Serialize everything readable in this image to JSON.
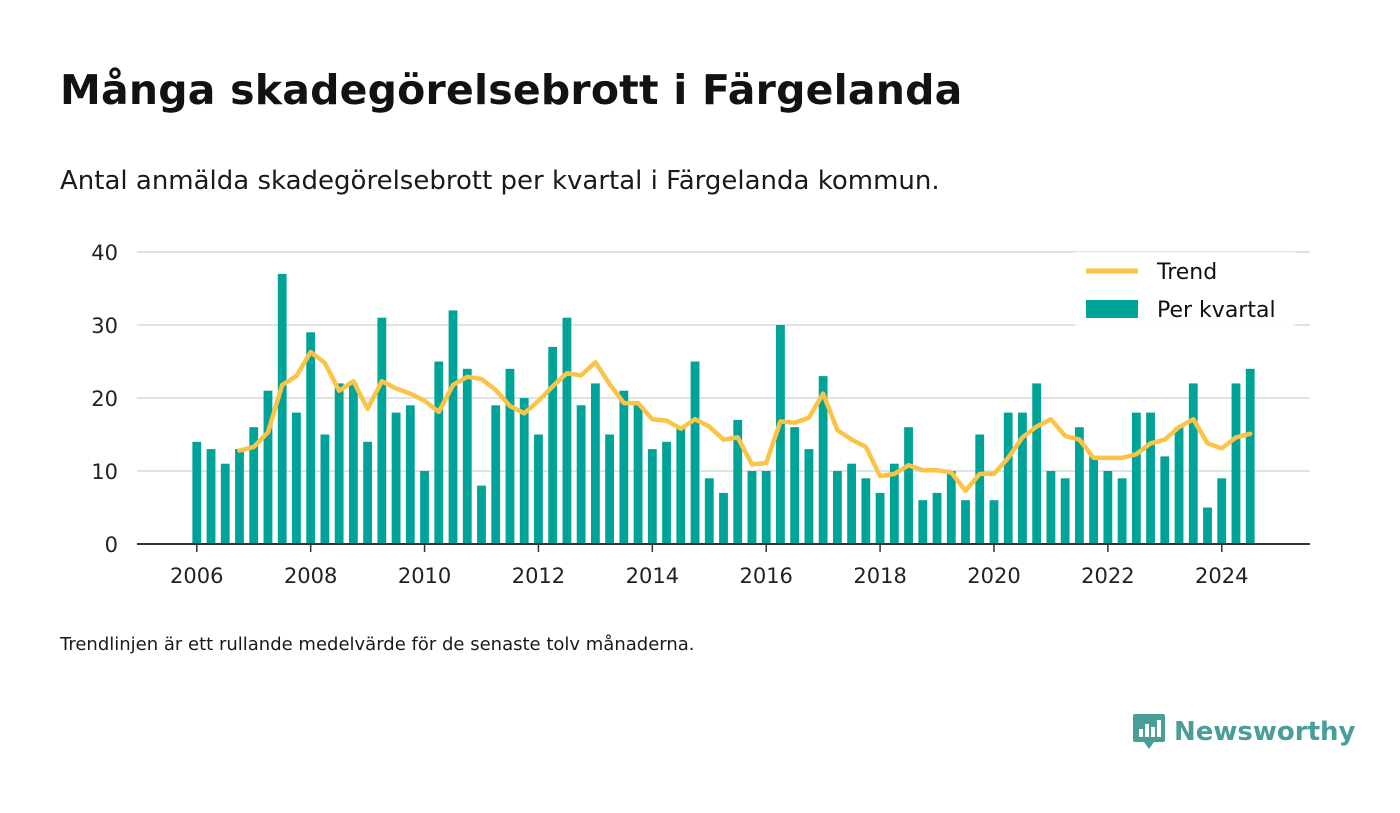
{
  "title": "Många skadegörelsebrott i Färgelanda",
  "subtitle": "Antal anmälda skadegörelsebrott per kvartal i Färgelanda kommun.",
  "note": "Trendlinjen är ett rullande medelvärde för de senaste tolv månaderna.",
  "brand": "Newsworthy",
  "colors": {
    "bar": "#00a398",
    "trend": "#fcc446",
    "grid": "#d9d9d9",
    "axis": "#333333"
  },
  "chart_data": {
    "type": "bar",
    "x_start": 2006.0,
    "x_step": 0.25,
    "xlim": [
      2004.95,
      2025.55
    ],
    "ylim": [
      0,
      40
    ],
    "yticks": [
      0,
      10,
      20,
      30,
      40
    ],
    "xticks": [
      2006,
      2008,
      2010,
      2012,
      2014,
      2016,
      2018,
      2020,
      2022,
      2024
    ],
    "legend_position": "top-right",
    "grid": true,
    "series": [
      {
        "name": "Per kvartal",
        "kind": "bar",
        "values": [
          14,
          13,
          11,
          13,
          16,
          21,
          37,
          18,
          29,
          15,
          22,
          22,
          14,
          31,
          18,
          19,
          10,
          25,
          32,
          24,
          8,
          19,
          24,
          20,
          15,
          27,
          31,
          19,
          22,
          15,
          21,
          19,
          13,
          14,
          16,
          25,
          9,
          7,
          17,
          10,
          10,
          30,
          16,
          13,
          23,
          10,
          11,
          9,
          7,
          11,
          16,
          6,
          7,
          10,
          6,
          15,
          6,
          18,
          18,
          22,
          10,
          9,
          16,
          12,
          10,
          9,
          18,
          18,
          12,
          16,
          22,
          5,
          9,
          22,
          24
        ]
      },
      {
        "name": "Trend",
        "kind": "line",
        "x_start": 2006.75,
        "values": [
          12.8,
          13.3,
          15.3,
          21.8,
          23.0,
          26.3,
          24.8,
          21.0,
          22.3,
          18.5,
          22.3,
          21.3,
          20.6,
          19.6,
          18.1,
          21.8,
          22.9,
          22.6,
          21.1,
          18.9,
          17.9,
          19.6,
          21.6,
          23.4,
          23.1,
          24.9,
          21.9,
          19.3,
          19.3,
          17.1,
          16.9,
          15.8,
          17.1,
          16.1,
          14.3,
          14.6,
          10.9,
          11.1,
          16.8,
          16.6,
          17.3,
          20.6,
          15.6,
          14.3,
          13.3,
          9.3,
          9.6,
          10.8,
          10.1,
          10.1,
          9.8,
          7.3,
          9.6,
          9.6,
          11.8,
          14.6,
          16.1,
          17.1,
          14.8,
          14.3,
          11.8,
          11.8,
          11.8,
          12.3,
          13.8,
          14.3,
          16.0,
          17.1,
          13.8,
          13.1,
          14.6,
          15.1
        ]
      }
    ]
  }
}
